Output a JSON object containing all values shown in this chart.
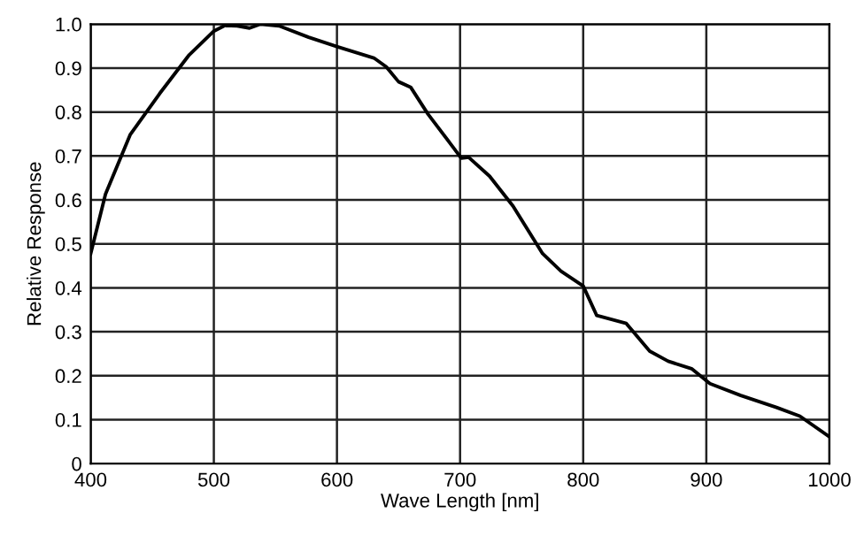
{
  "chart_data": {
    "type": "line",
    "xlabel": "Wave Length [nm]",
    "ylabel": "Relative Response",
    "series": [
      {
        "color": "#000000",
        "x": [
          400,
          412,
          432,
          456,
          480,
          500,
          509,
          519,
          529,
          538,
          553,
          577,
          601,
          630,
          640,
          650,
          660,
          674,
          694,
          701,
          707,
          724,
          743,
          767,
          782,
          800,
          811,
          835,
          854,
          869,
          888,
          903,
          928,
          957,
          976,
          1000
        ],
        "values": [
          0.478,
          0.613,
          0.748,
          0.842,
          0.93,
          0.984,
          0.997,
          0.996,
          0.991,
          1.0,
          0.996,
          0.97,
          0.948,
          0.923,
          0.903,
          0.869,
          0.856,
          0.795,
          0.721,
          0.695,
          0.697,
          0.654,
          0.586,
          0.478,
          0.438,
          0.404,
          0.337,
          0.319,
          0.256,
          0.233,
          0.216,
          0.182,
          0.155,
          0.128,
          0.108,
          0.061
        ]
      }
    ],
    "xlim": [
      400,
      1000
    ],
    "ylim": [
      0,
      1.0
    ],
    "xticks": [
      400,
      500,
      600,
      700,
      800,
      900,
      1000
    ],
    "yticks": [
      0,
      0.1,
      0.2,
      0.3,
      0.4,
      0.5,
      0.6,
      0.7,
      0.8,
      0.9,
      {
        "value": 1,
        "label": "1.0"
      }
    ],
    "grid": true,
    "legend": false,
    "marker": "none",
    "line_style": "solid"
  }
}
